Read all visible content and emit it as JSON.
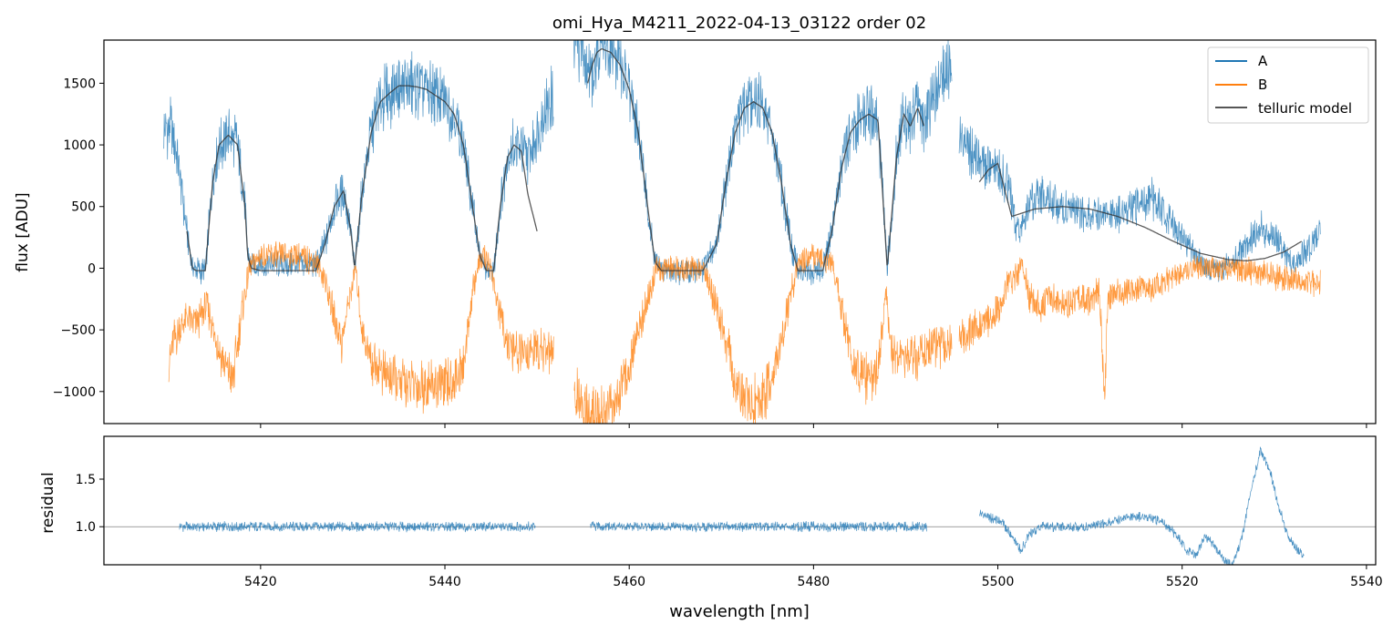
{
  "figure": {
    "title": "omi_Hya_M4211_2022-04-13_03122  order 02"
  },
  "colors": {
    "A": "#1f77b4",
    "B": "#ff7f0e",
    "model": "#333333",
    "refline": "#808080"
  },
  "chart_data": [
    {
      "type": "line",
      "panel": "spectrum",
      "title": "omi_Hya_M4211_2022-04-13_03122  order 02",
      "xlabel": "",
      "ylabel": "flux [ADU]",
      "xlim": [
        5403,
        5541
      ],
      "ylim": [
        -1260,
        1850
      ],
      "grid": false,
      "legend_placement": "top-right",
      "x_ticks": [
        5420,
        5440,
        5460,
        5480,
        5500,
        5520,
        5540
      ],
      "y_ticks": [
        -1000,
        -500,
        0,
        500,
        1000,
        1500
      ],
      "y_tick_labels": [
        "−1000",
        "−500",
        "0",
        "500",
        "1000",
        "1500"
      ],
      "series": [
        {
          "name": "A",
          "segments": [
            {
              "x": [
                5409.5,
                5410.2,
                5411,
                5412,
                5412.6,
                5413,
                5414,
                5414.8,
                5415.5,
                5416.5,
                5417.5,
                5418.3,
                5418.6,
                5419,
                5420,
                5422,
                5424,
                5426,
                5427,
                5428,
                5429,
                5429.8,
                5430.2,
                5431,
                5432,
                5433,
                5434,
                5435,
                5436,
                5437,
                5438,
                5439,
                5440,
                5441,
                5442,
                5443,
                5443.8,
                5444.5,
                5445.3,
                5446,
                5446.8,
                5447.5,
                5448.3,
                5449,
                5450,
                5451,
                5451.8
              ],
              "y": [
                1100,
                1150,
                900,
                300,
                0,
                -20,
                -20,
                700,
                1000,
                1080,
                1000,
                500,
                100,
                30,
                30,
                30,
                30,
                30,
                200,
                500,
                630,
                300,
                0,
                600,
                1100,
                1350,
                1420,
                1480,
                1480,
                1470,
                1450,
                1400,
                1350,
                1250,
                1000,
                500,
                100,
                -20,
                -20,
                500,
                900,
                1000,
                950,
                900,
                1100,
                1300,
                1400
              ]
            },
            {
              "x": [
                5454,
                5454.8,
                5455.5,
                5456,
                5456.5,
                5457,
                5458,
                5459,
                5460,
                5461,
                5462,
                5462.8,
                5463.5,
                5464,
                5466,
                5468,
                5469.5,
                5470.5,
                5471.5,
                5472.5,
                5473.5,
                5474.5,
                5475.5,
                5476.5,
                5477.5,
                5478.3,
                5479,
                5481,
                5482,
                5483,
                5484,
                5485,
                5486,
                5487,
                5487.5,
                5488,
                5489,
                5489.8,
                5490.5,
                5491.3,
                5492,
                5493,
                5494,
                5495
              ],
              "y": [
                1700,
                1800,
                1650,
                1500,
                1700,
                1800,
                1750,
                1650,
                1450,
                1100,
                500,
                50,
                -20,
                -20,
                -20,
                -20,
                200,
                700,
                1100,
                1300,
                1350,
                1300,
                1100,
                700,
                200,
                -20,
                -20,
                -20,
                300,
                800,
                1100,
                1200,
                1250,
                1200,
                600,
                0,
                900,
                1250,
                1150,
                1300,
                1150,
                1400,
                1550,
                1680
              ]
            },
            {
              "x": [
                5495.8,
                5497,
                5498.5,
                5500,
                5501,
                5502,
                5502.7,
                5503.5,
                5505,
                5507,
                5509,
                5511,
                5513,
                5515,
                5516.5,
                5518,
                5519.5,
                5521,
                5522.5,
                5524,
                5525.5,
                5527,
                5528.5,
                5530,
                5531,
                5532,
                5533,
                5534,
                5535
              ],
              "y": [
                1100,
                950,
                850,
                800,
                700,
                350,
                300,
                550,
                600,
                500,
                450,
                450,
                420,
                500,
                600,
                450,
                300,
                150,
                0,
                0,
                50,
                200,
                320,
                250,
                150,
                50,
                100,
                200,
                270
              ]
            }
          ]
        },
        {
          "name": "B",
          "segments": [
            {
              "x": [
                5410,
                5410.5,
                5411.2,
                5412,
                5413,
                5414.2,
                5415.2,
                5416.2,
                5417,
                5417.7,
                5418.3,
                5418.8,
                5419.3,
                5420,
                5422,
                5424,
                5426,
                5427,
                5428,
                5428.8,
                5429.5,
                5430.3,
                5431,
                5432,
                5434,
                5436,
                5438,
                5440,
                5441,
                5442,
                5442.8,
                5443.5,
                5444.2,
                5445,
                5446,
                5447,
                5448,
                5449,
                5450,
                5451,
                5451.8
              ],
              "y": [
                -800,
                -600,
                -500,
                -400,
                -450,
                -300,
                -600,
                -800,
                -900,
                -500,
                -200,
                0,
                50,
                100,
                100,
                100,
                50,
                -100,
                -400,
                -600,
                -300,
                0,
                -500,
                -750,
                -900,
                -950,
                -950,
                -950,
                -900,
                -800,
                -300,
                0,
                100,
                0,
                -400,
                -650,
                -700,
                -700,
                -650,
                -680,
                -700
              ]
            },
            {
              "x": [
                5454,
                5455,
                5456,
                5457,
                5458,
                5459,
                5460,
                5461,
                5462,
                5463,
                5464,
                5466,
                5468,
                5469.5,
                5470.5,
                5471.5,
                5472.5,
                5473.5,
                5474.5,
                5475.5,
                5476.5,
                5477.5,
                5478.5,
                5480,
                5482,
                5483,
                5484,
                5485,
                5486,
                5487,
                5487.8,
                5488.5,
                5490,
                5491.5,
                5493,
                5494.5,
                5495
              ],
              "y": [
                -1000,
                -1150,
                -1150,
                -1150,
                -1100,
                -1000,
                -800,
                -500,
                -250,
                0,
                0,
                0,
                0,
                -300,
                -600,
                -900,
                -1050,
                -1100,
                -1050,
                -900,
                -600,
                -200,
                50,
                100,
                50,
                -300,
                -700,
                -850,
                -900,
                -850,
                -200,
                -700,
                -750,
                -700,
                -650,
                -650,
                -600
              ]
            },
            {
              "x": [
                5495.8,
                5497,
                5498.5,
                5500,
                5501,
                5502,
                5502.7,
                5503.5,
                5504.5,
                5505.5,
                5507,
                5508.5,
                5510,
                5511,
                5511.6,
                5512,
                5513,
                5515,
                5517,
                5519,
                5521,
                5523,
                5525,
                5527,
                5529,
                5531,
                5533,
                5535
              ],
              "y": [
                -600,
                -500,
                -450,
                -350,
                -150,
                -50,
                0,
                -250,
                -300,
                -250,
                -300,
                -250,
                -250,
                -200,
                -1000,
                -250,
                -200,
                -180,
                -150,
                -80,
                0,
                0,
                0,
                -20,
                -50,
                -80,
                -100,
                -120
              ]
            }
          ]
        },
        {
          "name": "telluric model",
          "segments": [
            {
              "x": [
                5412,
                5412.6,
                5413,
                5414,
                5414.8,
                5415.5,
                5416.5,
                5417.5,
                5418.3,
                5418.6,
                5419,
                5420,
                5422,
                5424,
                5426,
                5427,
                5428,
                5429,
                5429.8,
                5430.2,
                5431,
                5432,
                5433,
                5434,
                5435,
                5436,
                5437,
                5438,
                5439,
                5440,
                5441,
                5442,
                5443,
                5443.8,
                5444.5,
                5445.3,
                5446,
                5446.8,
                5447.5,
                5448.3,
                5449,
                5450
              ],
              "y": [
                300,
                0,
                -20,
                -20,
                700,
                1000,
                1080,
                1000,
                500,
                100,
                0,
                -20,
                -20,
                -20,
                -20,
                200,
                500,
                630,
                300,
                0,
                600,
                1100,
                1350,
                1420,
                1480,
                1480,
                1470,
                1450,
                1400,
                1350,
                1250,
                1000,
                500,
                100,
                -20,
                -20,
                500,
                900,
                1000,
                950,
                600,
                300
              ]
            },
            {
              "x": [
                5455.5,
                5456,
                5456.5,
                5457,
                5458,
                5459,
                5460,
                5461,
                5462,
                5462.8,
                5463.5,
                5464,
                5466,
                5468,
                5469.5,
                5470.5,
                5471.5,
                5472.5,
                5473.5,
                5474.5,
                5475.5,
                5476.5,
                5477.5,
                5478.3,
                5479,
                5481,
                5482,
                5483,
                5484,
                5485,
                5486,
                5487,
                5487.5,
                5488,
                5489,
                5489.8,
                5490.5,
                5491.3,
                5492
              ],
              "y": [
                1500,
                1650,
                1750,
                1780,
                1750,
                1650,
                1450,
                1100,
                500,
                50,
                -20,
                -20,
                -20,
                -20,
                200,
                700,
                1100,
                1300,
                1350,
                1300,
                1100,
                700,
                200,
                -20,
                -20,
                -20,
                300,
                800,
                1100,
                1200,
                1250,
                1200,
                600,
                0,
                900,
                1250,
                1150,
                1300,
                1150
              ]
            },
            {
              "x": [
                5498,
                5499,
                5500,
                5501.5,
                5504,
                5507,
                5510,
                5513,
                5516,
                5519,
                5522,
                5525,
                5527,
                5529,
                5531,
                5533
              ],
              "y": [
                700,
                800,
                850,
                420,
                480,
                500,
                480,
                420,
                330,
                220,
                120,
                70,
                60,
                80,
                130,
                220
              ]
            }
          ]
        }
      ]
    },
    {
      "type": "line",
      "panel": "residual",
      "title": "",
      "xlabel": "wavelength [nm]",
      "ylabel": "residual",
      "xlim": [
        5403,
        5541
      ],
      "ylim": [
        0.6,
        1.95
      ],
      "grid": false,
      "reference_line": 1.0,
      "x_ticks": [
        5420,
        5440,
        5460,
        5480,
        5500,
        5520,
        5540
      ],
      "x_tick_labels": [
        "5420",
        "5440",
        "5460",
        "5480",
        "5500",
        "5520",
        "5540"
      ],
      "y_ticks": [
        1.0,
        1.5
      ],
      "y_tick_labels": [
        "1.0",
        "1.5"
      ],
      "series": [
        {
          "name": "A",
          "segments": [
            {
              "x": [
                5411.2,
                5415,
                5420,
                5425,
                5430,
                5435,
                5440,
                5445,
                5449.8
              ],
              "y": [
                1.0,
                1.0,
                1.0,
                1.0,
                1.0,
                1.0,
                1.0,
                1.0,
                1.0
              ]
            },
            {
              "x": [
                5455.8,
                5460,
                5465,
                5470,
                5475,
                5480,
                5485,
                5490,
                5492.3
              ],
              "y": [
                1.0,
                1.0,
                1.0,
                1.0,
                1.0,
                1.0,
                1.0,
                1.0,
                1.0
              ]
            },
            {
              "x": [
                5498,
                5499,
                5500.5,
                5501.5,
                5502.5,
                5503.3,
                5504.5,
                5506,
                5508,
                5510,
                5512,
                5514,
                5516,
                5518,
                5519.5,
                5520.5,
                5521.5,
                5522.5,
                5523.5,
                5524.5,
                5525.5,
                5526.5,
                5527.5,
                5528.5,
                5529.5,
                5530.5,
                5531.5,
                5532.5,
                5533.2
              ],
              "y": [
                1.15,
                1.1,
                1.05,
                0.9,
                0.75,
                0.9,
                1.0,
                1.0,
                1.0,
                1.0,
                1.05,
                1.1,
                1.1,
                1.05,
                0.9,
                0.75,
                0.7,
                0.9,
                0.8,
                0.65,
                0.6,
                0.9,
                1.4,
                1.8,
                1.6,
                1.2,
                0.9,
                0.75,
                0.7
              ]
            }
          ]
        }
      ]
    }
  ]
}
